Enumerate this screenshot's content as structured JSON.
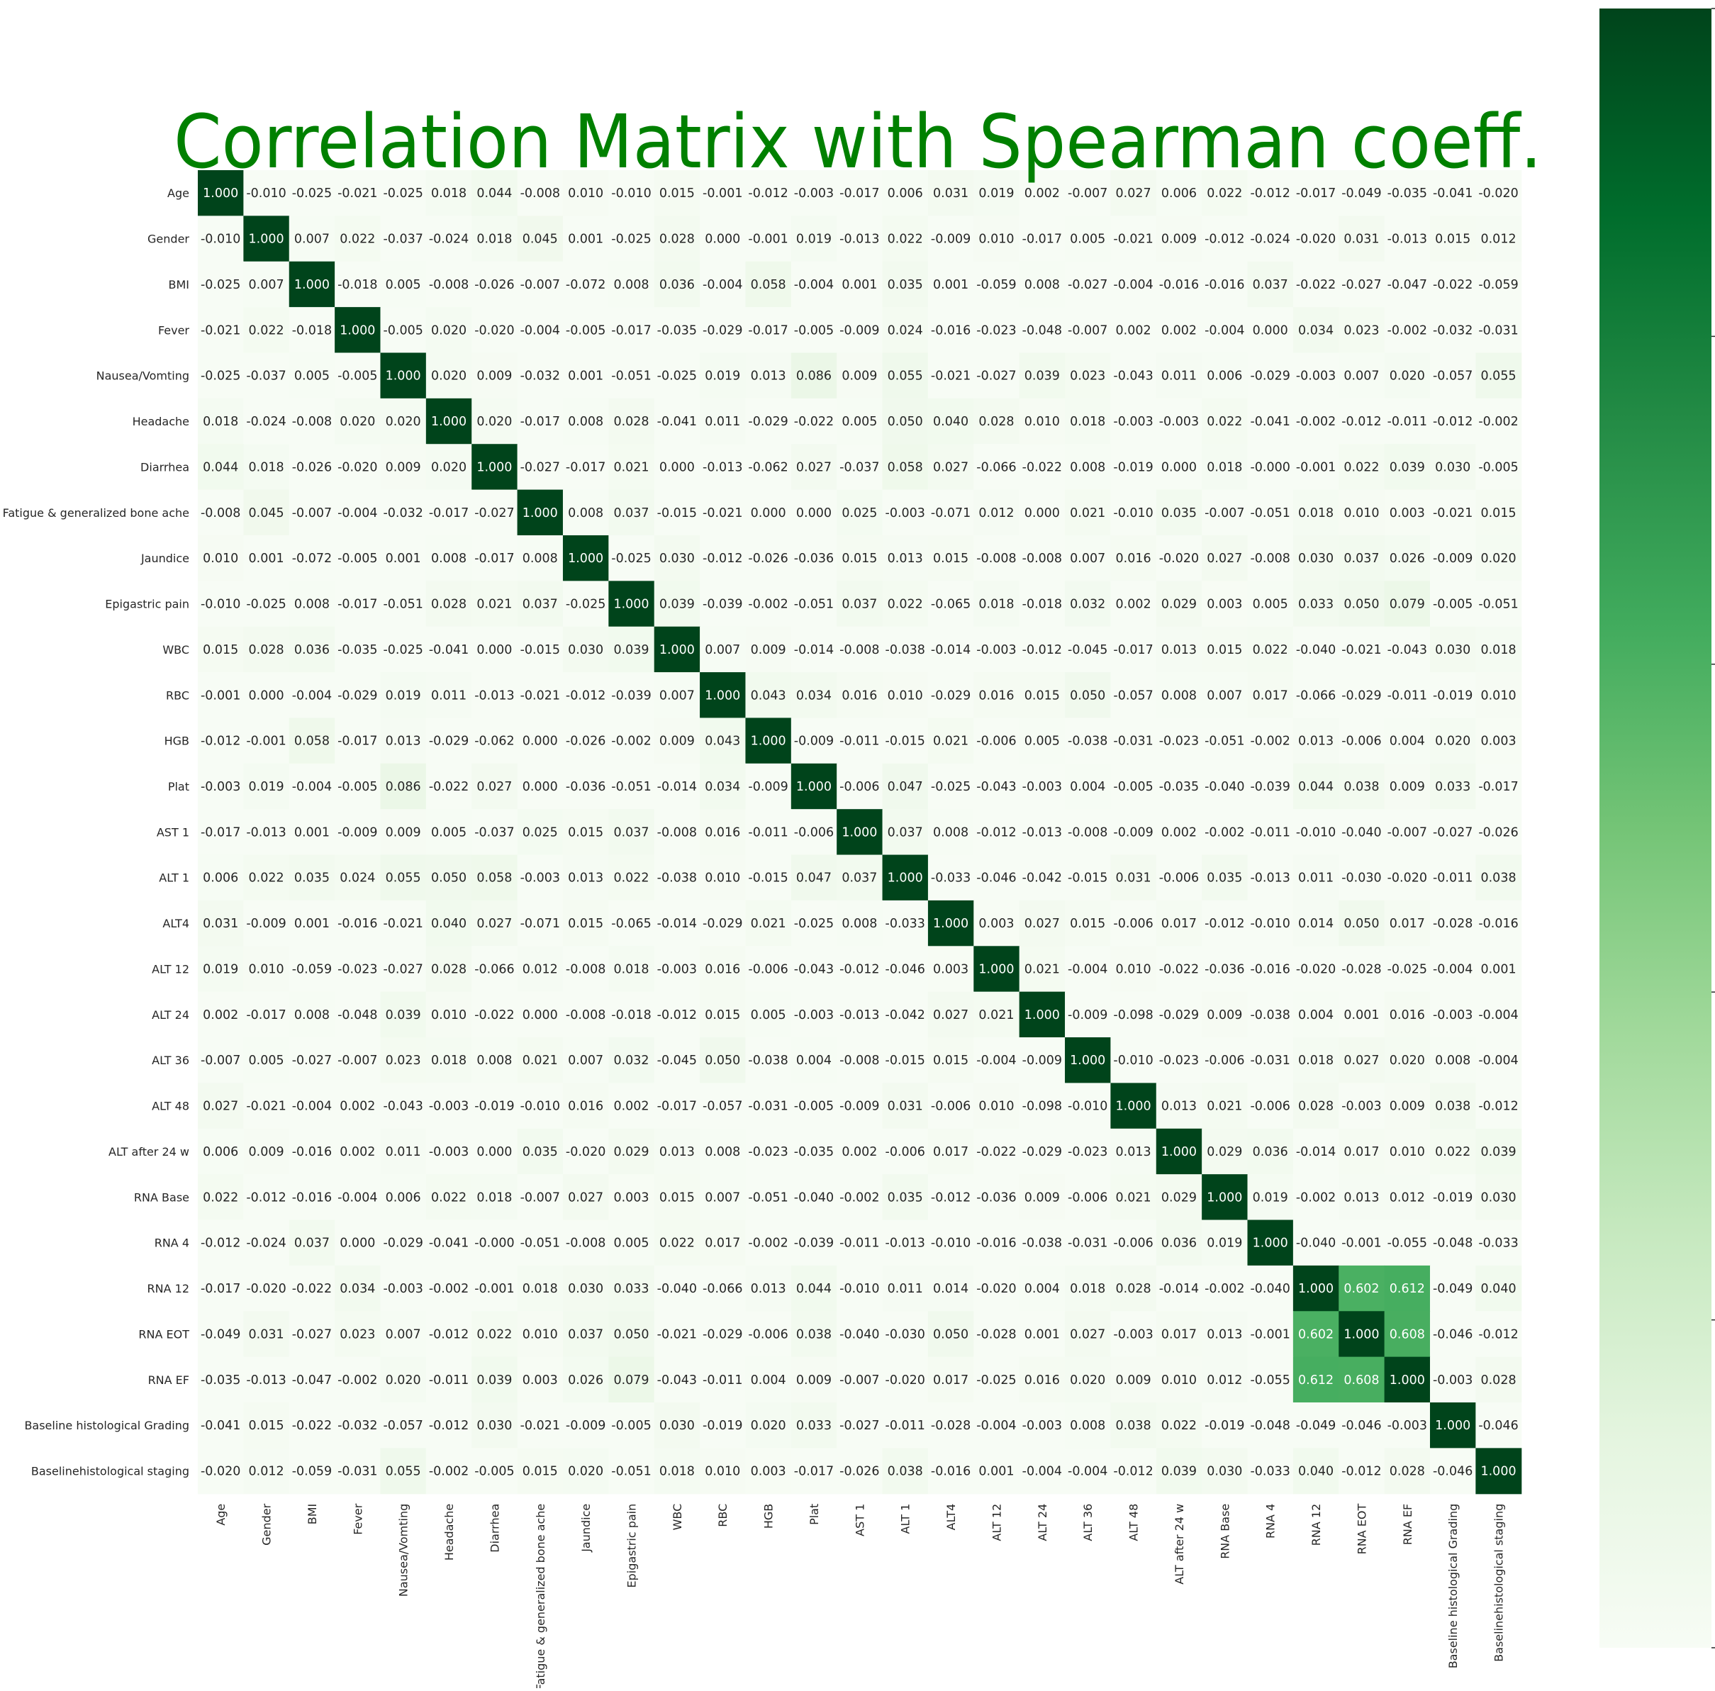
{
  "chart_data": {
    "type": "heatmap",
    "title": "Correlation Matrix with Spearman coeff.",
    "title_color": "#008000",
    "colormap": "Greens",
    "vmin": 0.0,
    "vmax": 1.0,
    "colorbar_ticks": [
      "0.0",
      "0.2",
      "0.4",
      "0.6",
      "0.8",
      "1.0"
    ],
    "labels": [
      "Age",
      "Gender",
      "BMI",
      "Fever",
      "Nausea/Vomting",
      "Headache",
      "Diarrhea",
      "Fatigue & generalized bone ache",
      "Jaundice",
      "Epigastric pain",
      "WBC",
      "RBC",
      "HGB",
      "Plat",
      "AST 1",
      "ALT 1",
      "ALT4",
      "ALT 12",
      "ALT 24",
      "ALT 36",
      "ALT 48",
      "ALT after 24 w",
      "RNA Base",
      "RNA 4",
      "RNA 12",
      "RNA EOT",
      "RNA EF",
      "Baseline histological Grading",
      "Baselinehistological staging"
    ],
    "matrix": [
      [
        "1.000",
        "-0.010",
        "-0.025",
        "-0.021",
        "-0.025",
        "0.018",
        "0.044",
        "-0.008",
        "0.010",
        "-0.010",
        "0.015",
        "-0.001",
        "-0.012",
        "-0.003",
        "-0.017",
        "0.006",
        "0.031",
        "0.019",
        "0.002",
        "-0.007",
        "0.027",
        "0.006",
        "0.022",
        "-0.012",
        "-0.017",
        "-0.049",
        "-0.035",
        "-0.041",
        "-0.020"
      ],
      [
        "-0.010",
        "1.000",
        "0.007",
        "0.022",
        "-0.037",
        "-0.024",
        "0.018",
        "0.045",
        "0.001",
        "-0.025",
        "0.028",
        "0.000",
        "-0.001",
        "0.019",
        "-0.013",
        "0.022",
        "-0.009",
        "0.010",
        "-0.017",
        "0.005",
        "-0.021",
        "0.009",
        "-0.012",
        "-0.024",
        "-0.020",
        "0.031",
        "-0.013",
        "0.015",
        "0.012"
      ],
      [
        "-0.025",
        "0.007",
        "1.000",
        "-0.018",
        "0.005",
        "-0.008",
        "-0.026",
        "-0.007",
        "-0.072",
        "0.008",
        "0.036",
        "-0.004",
        "0.058",
        "-0.004",
        "0.001",
        "0.035",
        "0.001",
        "-0.059",
        "0.008",
        "-0.027",
        "-0.004",
        "-0.016",
        "-0.016",
        "0.037",
        "-0.022",
        "-0.027",
        "-0.047",
        "-0.022",
        "-0.059"
      ],
      [
        "-0.021",
        "0.022",
        "-0.018",
        "1.000",
        "-0.005",
        "0.020",
        "-0.020",
        "-0.004",
        "-0.005",
        "-0.017",
        "-0.035",
        "-0.029",
        "-0.017",
        "-0.005",
        "-0.009",
        "0.024",
        "-0.016",
        "-0.023",
        "-0.048",
        "-0.007",
        "0.002",
        "0.002",
        "-0.004",
        "0.000",
        "0.034",
        "0.023",
        "-0.002",
        "-0.032",
        "-0.031"
      ],
      [
        "-0.025",
        "-0.037",
        "0.005",
        "-0.005",
        "1.000",
        "0.020",
        "0.009",
        "-0.032",
        "0.001",
        "-0.051",
        "-0.025",
        "0.019",
        "0.013",
        "0.086",
        "0.009",
        "0.055",
        "-0.021",
        "-0.027",
        "0.039",
        "0.023",
        "-0.043",
        "0.011",
        "0.006",
        "-0.029",
        "-0.003",
        "0.007",
        "0.020",
        "-0.057",
        "0.055"
      ],
      [
        "0.018",
        "-0.024",
        "-0.008",
        "0.020",
        "0.020",
        "1.000",
        "0.020",
        "-0.017",
        "0.008",
        "0.028",
        "-0.041",
        "0.011",
        "-0.029",
        "-0.022",
        "0.005",
        "0.050",
        "0.040",
        "0.028",
        "0.010",
        "0.018",
        "-0.003",
        "-0.003",
        "0.022",
        "-0.041",
        "-0.002",
        "-0.012",
        "-0.011",
        "-0.012",
        "-0.002"
      ],
      [
        "0.044",
        "0.018",
        "-0.026",
        "-0.020",
        "0.009",
        "0.020",
        "1.000",
        "-0.027",
        "-0.017",
        "0.021",
        "0.000",
        "-0.013",
        "-0.062",
        "0.027",
        "-0.037",
        "0.058",
        "0.027",
        "-0.066",
        "-0.022",
        "0.008",
        "-0.019",
        "0.000",
        "0.018",
        "-0.000",
        "-0.001",
        "0.022",
        "0.039",
        "0.030",
        "-0.005"
      ],
      [
        "-0.008",
        "0.045",
        "-0.007",
        "-0.004",
        "-0.032",
        "-0.017",
        "-0.027",
        "1.000",
        "0.008",
        "0.037",
        "-0.015",
        "-0.021",
        "0.000",
        "0.000",
        "0.025",
        "-0.003",
        "-0.071",
        "0.012",
        "0.000",
        "0.021",
        "-0.010",
        "0.035",
        "-0.007",
        "-0.051",
        "0.018",
        "0.010",
        "0.003",
        "-0.021",
        "0.015"
      ],
      [
        "0.010",
        "0.001",
        "-0.072",
        "-0.005",
        "0.001",
        "0.008",
        "-0.017",
        "0.008",
        "1.000",
        "-0.025",
        "0.030",
        "-0.012",
        "-0.026",
        "-0.036",
        "0.015",
        "0.013",
        "0.015",
        "-0.008",
        "-0.008",
        "0.007",
        "0.016",
        "-0.020",
        "0.027",
        "-0.008",
        "0.030",
        "0.037",
        "0.026",
        "-0.009",
        "0.020"
      ],
      [
        "-0.010",
        "-0.025",
        "0.008",
        "-0.017",
        "-0.051",
        "0.028",
        "0.021",
        "0.037",
        "-0.025",
        "1.000",
        "0.039",
        "-0.039",
        "-0.002",
        "-0.051",
        "0.037",
        "0.022",
        "-0.065",
        "0.018",
        "-0.018",
        "0.032",
        "0.002",
        "0.029",
        "0.003",
        "0.005",
        "0.033",
        "0.050",
        "0.079",
        "-0.005",
        "-0.051"
      ],
      [
        "0.015",
        "0.028",
        "0.036",
        "-0.035",
        "-0.025",
        "-0.041",
        "0.000",
        "-0.015",
        "0.030",
        "0.039",
        "1.000",
        "0.007",
        "0.009",
        "-0.014",
        "-0.008",
        "-0.038",
        "-0.014",
        "-0.003",
        "-0.012",
        "-0.045",
        "-0.017",
        "0.013",
        "0.015",
        "0.022",
        "-0.040",
        "-0.021",
        "-0.043",
        "0.030",
        "0.018"
      ],
      [
        "-0.001",
        "0.000",
        "-0.004",
        "-0.029",
        "0.019",
        "0.011",
        "-0.013",
        "-0.021",
        "-0.012",
        "-0.039",
        "0.007",
        "1.000",
        "0.043",
        "0.034",
        "0.016",
        "0.010",
        "-0.029",
        "0.016",
        "0.015",
        "0.050",
        "-0.057",
        "0.008",
        "0.007",
        "0.017",
        "-0.066",
        "-0.029",
        "-0.011",
        "-0.019",
        "0.010"
      ],
      [
        "-0.012",
        "-0.001",
        "0.058",
        "-0.017",
        "0.013",
        "-0.029",
        "-0.062",
        "0.000",
        "-0.026",
        "-0.002",
        "0.009",
        "0.043",
        "1.000",
        "-0.009",
        "-0.011",
        "-0.015",
        "0.021",
        "-0.006",
        "0.005",
        "-0.038",
        "-0.031",
        "-0.023",
        "-0.051",
        "-0.002",
        "0.013",
        "-0.006",
        "0.004",
        "0.020",
        "0.003"
      ],
      [
        "-0.003",
        "0.019",
        "-0.004",
        "-0.005",
        "0.086",
        "-0.022",
        "0.027",
        "0.000",
        "-0.036",
        "-0.051",
        "-0.014",
        "0.034",
        "-0.009",
        "1.000",
        "-0.006",
        "0.047",
        "-0.025",
        "-0.043",
        "-0.003",
        "0.004",
        "-0.005",
        "-0.035",
        "-0.040",
        "-0.039",
        "0.044",
        "0.038",
        "0.009",
        "0.033",
        "-0.017"
      ],
      [
        "-0.017",
        "-0.013",
        "0.001",
        "-0.009",
        "0.009",
        "0.005",
        "-0.037",
        "0.025",
        "0.015",
        "0.037",
        "-0.008",
        "0.016",
        "-0.011",
        "-0.006",
        "1.000",
        "0.037",
        "0.008",
        "-0.012",
        "-0.013",
        "-0.008",
        "-0.009",
        "0.002",
        "-0.002",
        "-0.011",
        "-0.010",
        "-0.040",
        "-0.007",
        "-0.027",
        "-0.026"
      ],
      [
        "0.006",
        "0.022",
        "0.035",
        "0.024",
        "0.055",
        "0.050",
        "0.058",
        "-0.003",
        "0.013",
        "0.022",
        "-0.038",
        "0.010",
        "-0.015",
        "0.047",
        "0.037",
        "1.000",
        "-0.033",
        "-0.046",
        "-0.042",
        "-0.015",
        "0.031",
        "-0.006",
        "0.035",
        "-0.013",
        "0.011",
        "-0.030",
        "-0.020",
        "-0.011",
        "0.038"
      ],
      [
        "0.031",
        "-0.009",
        "0.001",
        "-0.016",
        "-0.021",
        "0.040",
        "0.027",
        "-0.071",
        "0.015",
        "-0.065",
        "-0.014",
        "-0.029",
        "0.021",
        "-0.025",
        "0.008",
        "-0.033",
        "1.000",
        "0.003",
        "0.027",
        "0.015",
        "-0.006",
        "0.017",
        "-0.012",
        "-0.010",
        "0.014",
        "0.050",
        "0.017",
        "-0.028",
        "-0.016"
      ],
      [
        "0.019",
        "0.010",
        "-0.059",
        "-0.023",
        "-0.027",
        "0.028",
        "-0.066",
        "0.012",
        "-0.008",
        "0.018",
        "-0.003",
        "0.016",
        "-0.006",
        "-0.043",
        "-0.012",
        "-0.046",
        "0.003",
        "1.000",
        "0.021",
        "-0.004",
        "0.010",
        "-0.022",
        "-0.036",
        "-0.016",
        "-0.020",
        "-0.028",
        "-0.025",
        "-0.004",
        "0.001"
      ],
      [
        "0.002",
        "-0.017",
        "0.008",
        "-0.048",
        "0.039",
        "0.010",
        "-0.022",
        "0.000",
        "-0.008",
        "-0.018",
        "-0.012",
        "0.015",
        "0.005",
        "-0.003",
        "-0.013",
        "-0.042",
        "0.027",
        "0.021",
        "1.000",
        "-0.009",
        "-0.098",
        "-0.029",
        "0.009",
        "-0.038",
        "0.004",
        "0.001",
        "0.016",
        "-0.003",
        "-0.004"
      ],
      [
        "-0.007",
        "0.005",
        "-0.027",
        "-0.007",
        "0.023",
        "0.018",
        "0.008",
        "0.021",
        "0.007",
        "0.032",
        "-0.045",
        "0.050",
        "-0.038",
        "0.004",
        "-0.008",
        "-0.015",
        "0.015",
        "-0.004",
        "-0.009",
        "1.000",
        "-0.010",
        "-0.023",
        "-0.006",
        "-0.031",
        "0.018",
        "0.027",
        "0.020",
        "0.008",
        "-0.004"
      ],
      [
        "0.027",
        "-0.021",
        "-0.004",
        "0.002",
        "-0.043",
        "-0.003",
        "-0.019",
        "-0.010",
        "0.016",
        "0.002",
        "-0.017",
        "-0.057",
        "-0.031",
        "-0.005",
        "-0.009",
        "0.031",
        "-0.006",
        "0.010",
        "-0.098",
        "-0.010",
        "1.000",
        "0.013",
        "0.021",
        "-0.006",
        "0.028",
        "-0.003",
        "0.009",
        "0.038",
        "-0.012"
      ],
      [
        "0.006",
        "0.009",
        "-0.016",
        "0.002",
        "0.011",
        "-0.003",
        "0.000",
        "0.035",
        "-0.020",
        "0.029",
        "0.013",
        "0.008",
        "-0.023",
        "-0.035",
        "0.002",
        "-0.006",
        "0.017",
        "-0.022",
        "-0.029",
        "-0.023",
        "0.013",
        "1.000",
        "0.029",
        "0.036",
        "-0.014",
        "0.017",
        "0.010",
        "0.022",
        "0.039"
      ],
      [
        "0.022",
        "-0.012",
        "-0.016",
        "-0.004",
        "0.006",
        "0.022",
        "0.018",
        "-0.007",
        "0.027",
        "0.003",
        "0.015",
        "0.007",
        "-0.051",
        "-0.040",
        "-0.002",
        "0.035",
        "-0.012",
        "-0.036",
        "0.009",
        "-0.006",
        "0.021",
        "0.029",
        "1.000",
        "0.019",
        "-0.002",
        "0.013",
        "0.012",
        "-0.019",
        "0.030"
      ],
      [
        "-0.012",
        "-0.024",
        "0.037",
        "0.000",
        "-0.029",
        "-0.041",
        "-0.000",
        "-0.051",
        "-0.008",
        "0.005",
        "0.022",
        "0.017",
        "-0.002",
        "-0.039",
        "-0.011",
        "-0.013",
        "-0.010",
        "-0.016",
        "-0.038",
        "-0.031",
        "-0.006",
        "0.036",
        "0.019",
        "1.000",
        "-0.040",
        "-0.001",
        "-0.055",
        "-0.048",
        "-0.033"
      ],
      [
        "-0.017",
        "-0.020",
        "-0.022",
        "0.034",
        "-0.003",
        "-0.002",
        "-0.001",
        "0.018",
        "0.030",
        "0.033",
        "-0.040",
        "-0.066",
        "0.013",
        "0.044",
        "-0.010",
        "0.011",
        "0.014",
        "-0.020",
        "0.004",
        "0.018",
        "0.028",
        "-0.014",
        "-0.002",
        "-0.040",
        "1.000",
        "0.602",
        "0.612",
        "-0.049",
        "0.040"
      ],
      [
        "-0.049",
        "0.031",
        "-0.027",
        "0.023",
        "0.007",
        "-0.012",
        "0.022",
        "0.010",
        "0.037",
        "0.050",
        "-0.021",
        "-0.029",
        "-0.006",
        "0.038",
        "-0.040",
        "-0.030",
        "0.050",
        "-0.028",
        "0.001",
        "0.027",
        "-0.003",
        "0.017",
        "0.013",
        "-0.001",
        "0.602",
        "1.000",
        "0.608",
        "-0.046",
        "-0.012"
      ],
      [
        "-0.035",
        "-0.013",
        "-0.047",
        "-0.002",
        "0.020",
        "-0.011",
        "0.039",
        "0.003",
        "0.026",
        "0.079",
        "-0.043",
        "-0.011",
        "0.004",
        "0.009",
        "-0.007",
        "-0.020",
        "0.017",
        "-0.025",
        "0.016",
        "0.020",
        "0.009",
        "0.010",
        "0.012",
        "-0.055",
        "0.612",
        "0.608",
        "1.000",
        "-0.003",
        "0.028"
      ],
      [
        "-0.041",
        "0.015",
        "-0.022",
        "-0.032",
        "-0.057",
        "-0.012",
        "0.030",
        "-0.021",
        "-0.009",
        "-0.005",
        "0.030",
        "-0.019",
        "0.020",
        "0.033",
        "-0.027",
        "-0.011",
        "-0.028",
        "-0.004",
        "-0.003",
        "0.008",
        "0.038",
        "0.022",
        "-0.019",
        "-0.048",
        "-0.049",
        "-0.046",
        "-0.003",
        "1.000",
        "-0.046"
      ],
      [
        "-0.020",
        "0.012",
        "-0.059",
        "-0.031",
        "0.055",
        "-0.002",
        "-0.005",
        "0.015",
        "0.020",
        "-0.051",
        "0.018",
        "0.010",
        "0.003",
        "-0.017",
        "-0.026",
        "0.038",
        "-0.016",
        "0.001",
        "-0.004",
        "-0.004",
        "-0.012",
        "0.039",
        "0.030",
        "-0.033",
        "0.040",
        "-0.012",
        "0.028",
        "-0.046",
        "1.000"
      ]
    ]
  }
}
